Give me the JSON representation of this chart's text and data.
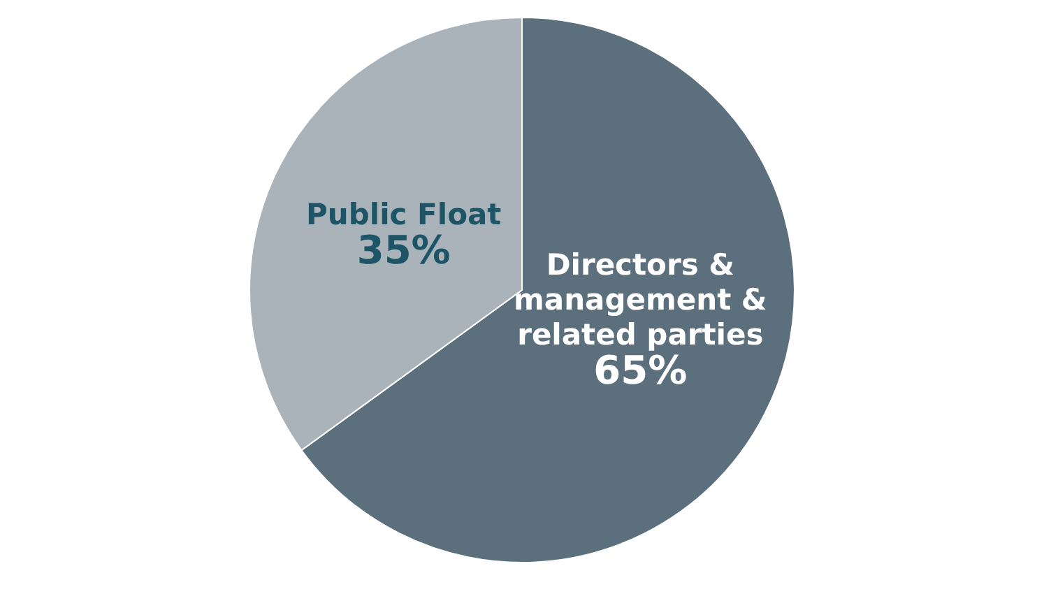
{
  "chart_data": {
    "type": "pie",
    "categories": [
      "Directors & management & related parties",
      "Public Float"
    ],
    "values": [
      65,
      35
    ],
    "colors": [
      "#5b6f7c",
      "#aab3b9"
    ],
    "value_labels": [
      "65%",
      "35%"
    ]
  }
}
